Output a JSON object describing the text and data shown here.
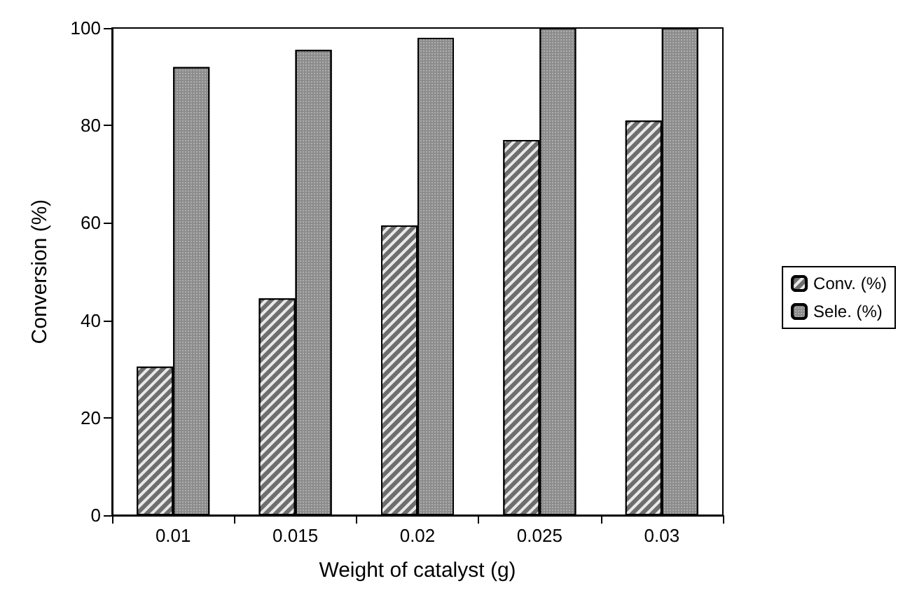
{
  "chart_data": {
    "type": "bar",
    "xlabel": "Weight of catalyst (g)",
    "ylabel": "Conversion (%)",
    "categories": [
      "0.01",
      "0.015",
      "0.02",
      "0.025",
      "0.03"
    ],
    "series": [
      {
        "name": "Conv. (%)",
        "color": "#6e6e6e",
        "values": [
          30.5,
          44.5,
          59.5,
          77,
          81
        ]
      },
      {
        "name": "Sele. (%)",
        "color": "#8c8c8c",
        "values": [
          92,
          95.5,
          98,
          100,
          100
        ]
      }
    ],
    "ylim": [
      0,
      100
    ],
    "yticks": [
      0,
      20,
      40,
      60,
      80,
      100
    ],
    "grid": false,
    "legend": "right"
  }
}
